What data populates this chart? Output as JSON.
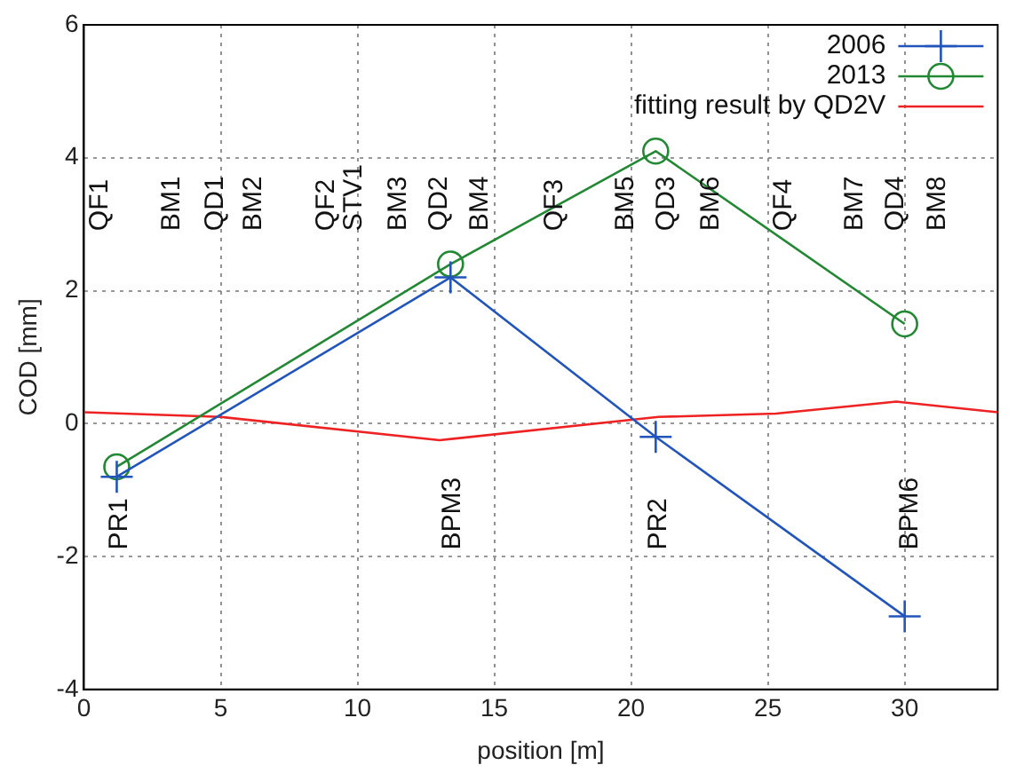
{
  "chart_data": {
    "type": "line",
    "xlabel": "position [m]",
    "ylabel": "COD [mm]",
    "xlim": [
      0,
      33.4
    ],
    "xticks": [
      0,
      5,
      10,
      15,
      20,
      25,
      30
    ],
    "ylim": [
      -4,
      6
    ],
    "yticks": [
      -4,
      -2,
      0,
      2,
      4,
      6
    ],
    "grid": true,
    "legend": "top right",
    "line_style": "solid",
    "series": [
      {
        "name": "2006",
        "color": "#2255bb",
        "marker": "cross",
        "x": [
          1.2,
          13.4,
          20.9,
          30
        ],
        "values": [
          -0.8,
          2.2,
          -0.2,
          -2.9
        ]
      },
      {
        "name": "2013",
        "color": "#228833",
        "marker": "circle",
        "x": [
          1.2,
          13.4,
          20.9,
          30
        ],
        "values": [
          -0.65,
          2.4,
          4.1,
          1.5
        ]
      },
      {
        "name": "fitting result by QD2V",
        "color": "#ee2222",
        "marker": "none",
        "x": [
          0,
          5,
          13,
          21,
          25.3,
          29.7,
          33.4
        ],
        "values": [
          0.17,
          0.1,
          -0.25,
          0.1,
          0.15,
          0.33,
          0.17
        ]
      }
    ],
    "annotations": [
      "QF1",
      "BM1",
      "QD1",
      "BM2",
      "QF2",
      "STV1",
      "BM3",
      "QD2",
      "BM4",
      "QF3",
      "BM5",
      "QD3",
      "BM6",
      "QF4",
      "BM7",
      "QD4",
      "BM8",
      "PR1",
      "BPM3",
      "PR2",
      "BPM6"
    ]
  }
}
